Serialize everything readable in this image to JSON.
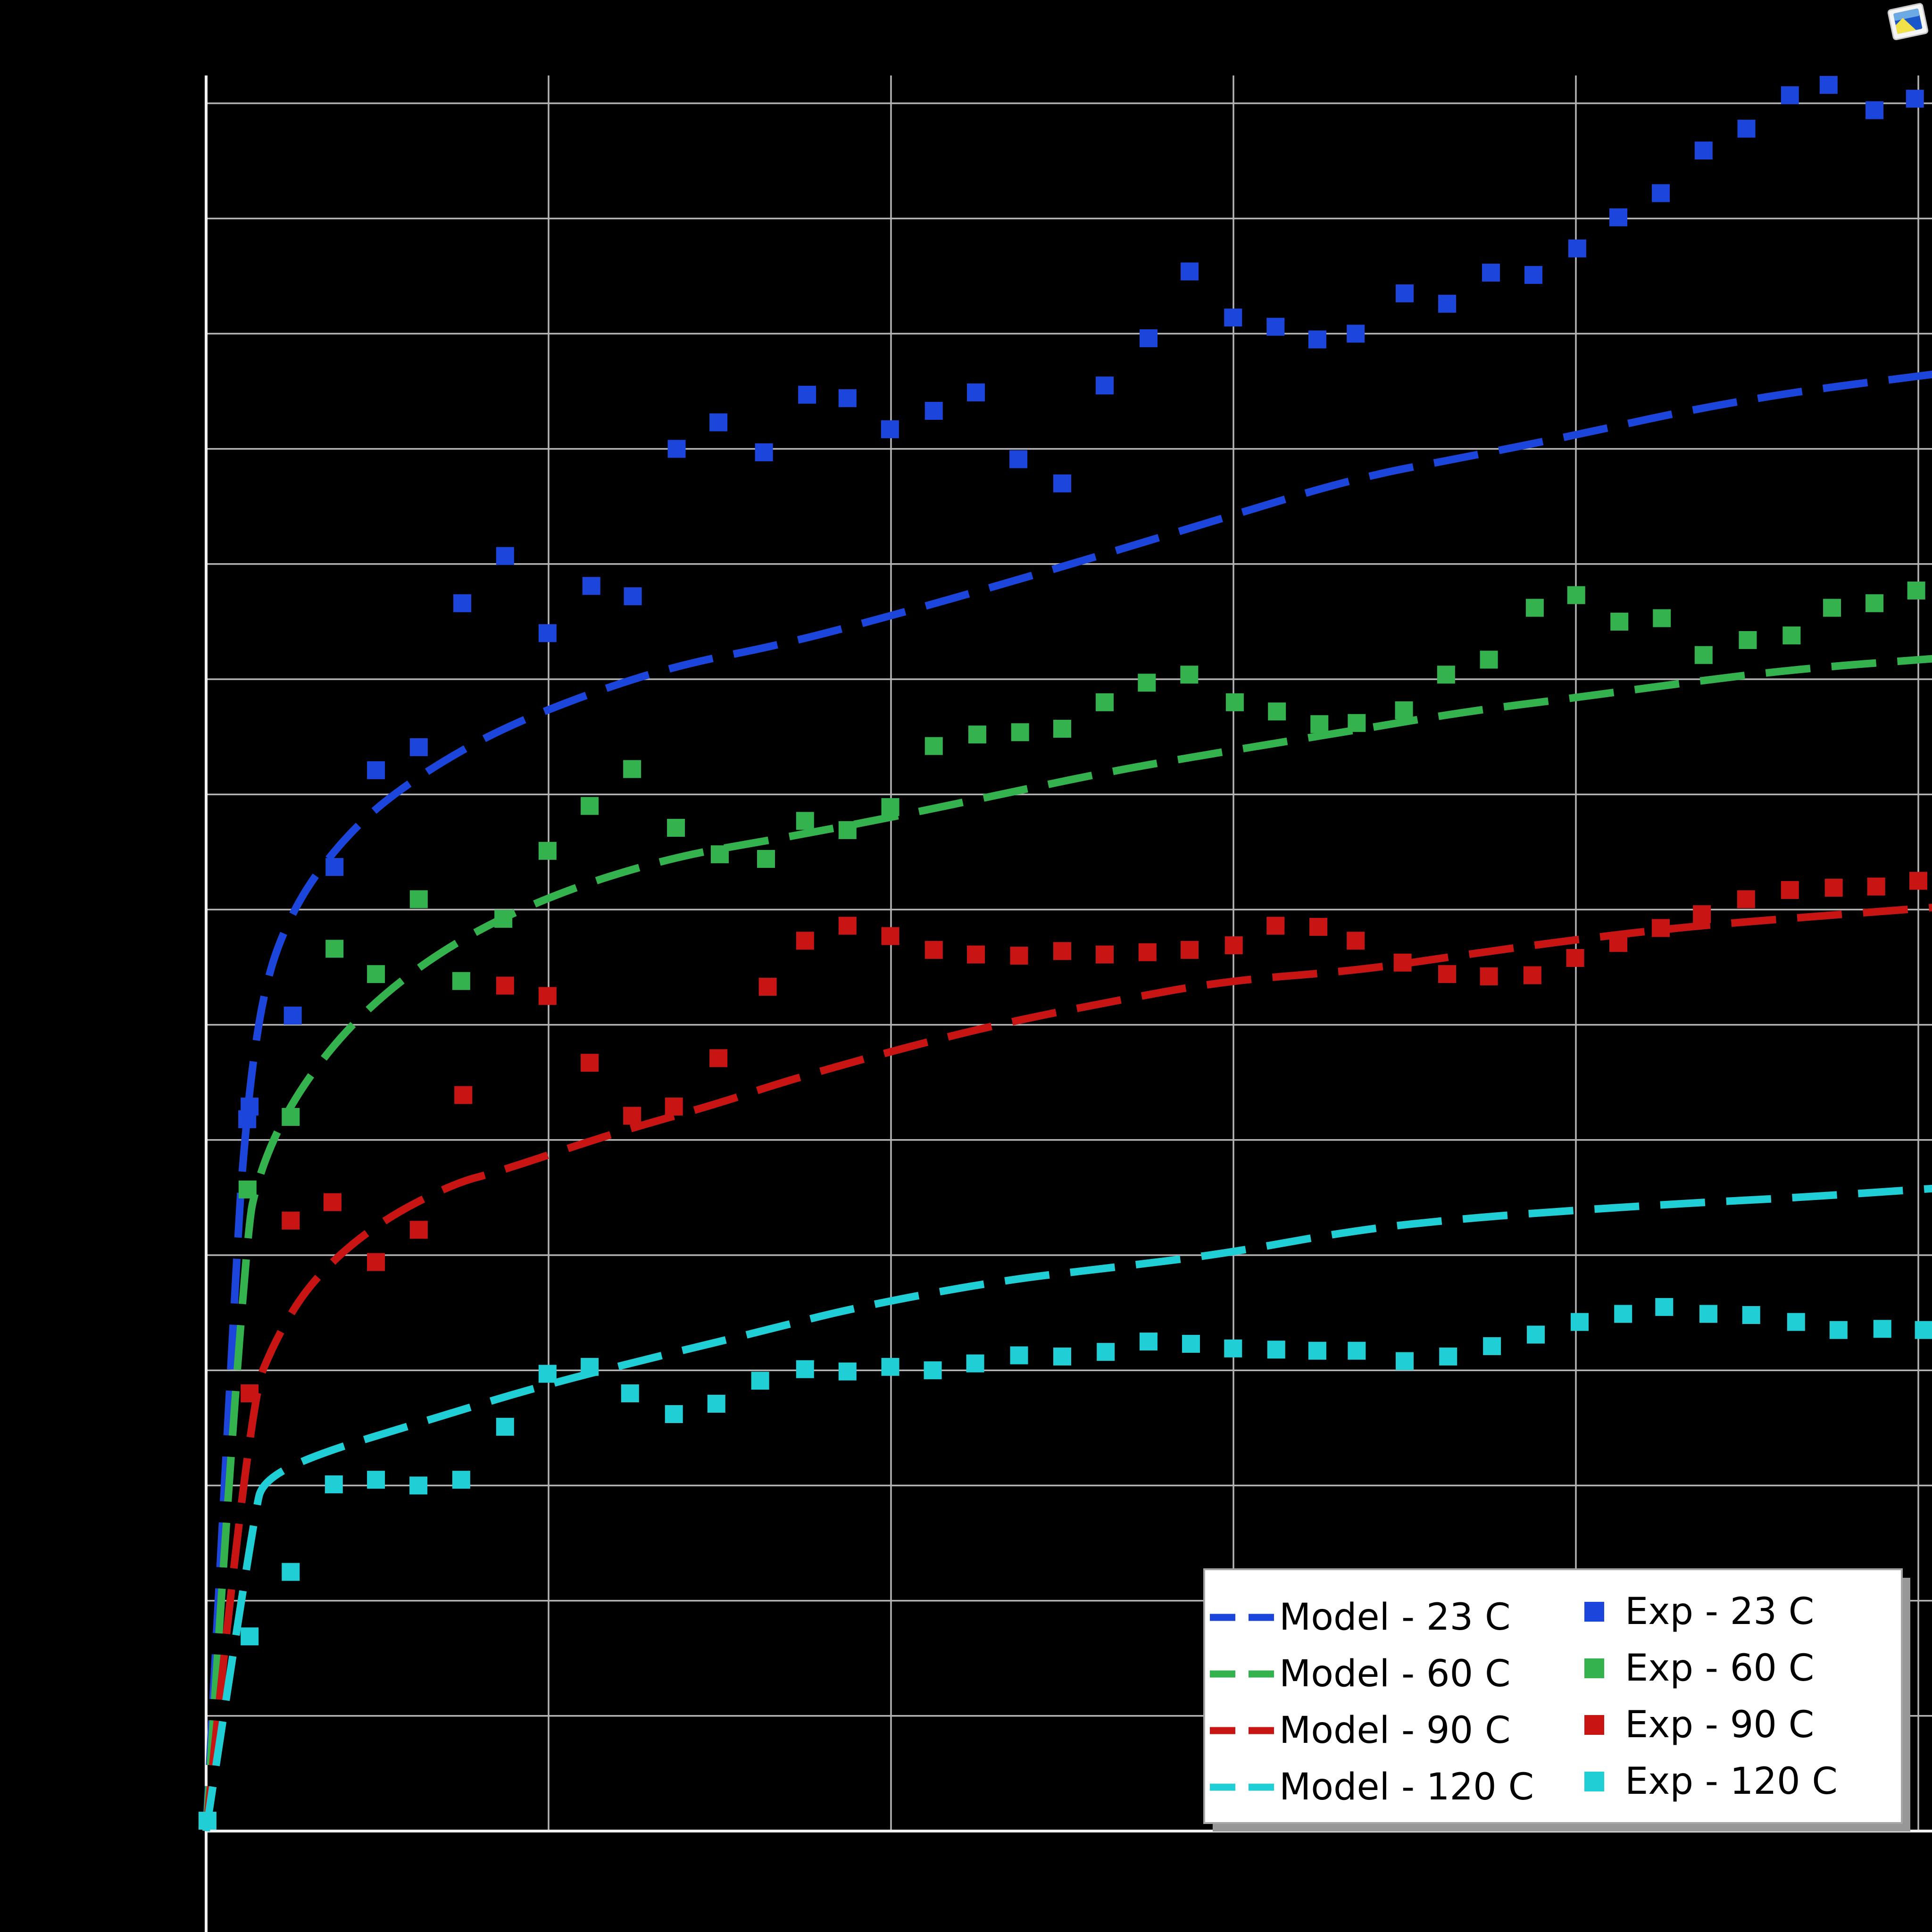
{
  "window": {
    "overlay_icon": "photo-viewer-icon"
  },
  "colors": {
    "background": "#000000",
    "grid": "#b4b4b4",
    "axis": "#f0f0f0",
    "legend_bg": "#ffffff",
    "legend_border": "#a6a6a6",
    "legend_shadow": "#979797",
    "legend_text": "#000000",
    "series_23c": "#1c46db",
    "series_60c": "#33b24e",
    "series_90c": "#c91414",
    "series_120c": "#20ced6",
    "icon_frame": "#f5f5f5",
    "icon_screen": "#1a57c8",
    "icon_screen_light": "#7db7e8",
    "icon_accent": "#f2e24a"
  },
  "chart_data": {
    "type": "scatter",
    "title": "",
    "xlabel": "",
    "ylabel": "",
    "xlim": [
      0,
      5.04
    ],
    "ylim": [
      0,
      15.24
    ],
    "x_gridline_step": 1,
    "y_gridline_step": 1,
    "grid": true,
    "tick_labels_visible": false,
    "legend_position": "lower right",
    "legend_columns": 2,
    "series": [
      {
        "name": "Model - 23 C",
        "role": "model",
        "temp_c": 23,
        "style": "dashed-line",
        "color": "#1c46db",
        "points": [
          [
            0,
            0
          ],
          [
            0.094,
            5.3
          ],
          [
            0.113,
            6.0
          ],
          [
            0.135,
            6.65
          ],
          [
            0.17,
            7.3
          ],
          [
            0.22,
            7.78
          ],
          [
            0.31,
            8.28
          ],
          [
            0.46,
            8.8
          ],
          [
            0.64,
            9.2
          ],
          [
            0.86,
            9.57
          ],
          [
            1.14,
            9.9
          ],
          [
            1.39,
            10.13
          ],
          [
            1.68,
            10.3
          ],
          [
            2.0,
            10.55
          ],
          [
            2.32,
            10.82
          ],
          [
            2.64,
            11.1
          ],
          [
            2.97,
            11.4
          ],
          [
            3.36,
            11.75
          ],
          [
            3.68,
            11.93
          ],
          [
            4.0,
            12.12
          ],
          [
            4.32,
            12.33
          ],
          [
            4.65,
            12.5
          ],
          [
            5.05,
            12.65
          ]
        ]
      },
      {
        "name": "Model - 60 C",
        "role": "model",
        "temp_c": 60,
        "style": "dashed-line",
        "color": "#33b24e",
        "points": [
          [
            0,
            0
          ],
          [
            0.11,
            5.1
          ],
          [
            0.16,
            5.78
          ],
          [
            0.27,
            6.44
          ],
          [
            0.45,
            7.1
          ],
          [
            0.7,
            7.68
          ],
          [
            1.0,
            8.12
          ],
          [
            1.35,
            8.45
          ],
          [
            1.68,
            8.62
          ],
          [
            2.0,
            8.8
          ],
          [
            2.32,
            9.0
          ],
          [
            2.64,
            9.2
          ],
          [
            2.97,
            9.37
          ],
          [
            3.36,
            9.56
          ],
          [
            3.68,
            9.72
          ],
          [
            4.0,
            9.84
          ],
          [
            4.32,
            9.97
          ],
          [
            4.65,
            10.09
          ],
          [
            5.05,
            10.18
          ]
        ]
      },
      {
        "name": "Model - 90 C",
        "role": "model",
        "temp_c": 90,
        "style": "dashed-line",
        "color": "#c91414",
        "points": [
          [
            0,
            0
          ],
          [
            0.124,
            3.7
          ],
          [
            0.21,
            4.32
          ],
          [
            0.32,
            4.82
          ],
          [
            0.5,
            5.28
          ],
          [
            0.72,
            5.62
          ],
          [
            0.86,
            5.73
          ],
          [
            1.18,
            6.05
          ],
          [
            1.5,
            6.32
          ],
          [
            1.68,
            6.5
          ],
          [
            2.0,
            6.77
          ],
          [
            2.32,
            7.01
          ],
          [
            2.64,
            7.2
          ],
          [
            2.97,
            7.38
          ],
          [
            3.36,
            7.47
          ],
          [
            3.68,
            7.61
          ],
          [
            4.0,
            7.74
          ],
          [
            4.32,
            7.85
          ],
          [
            4.65,
            7.93
          ],
          [
            5.05,
            8.02
          ]
        ]
      },
      {
        "name": "Model - 120 C",
        "role": "model",
        "temp_c": 120,
        "style": "dashed-line",
        "color": "#20ced6",
        "points": [
          [
            0,
            0
          ],
          [
            0.142,
            2.8
          ],
          [
            0.17,
            3.05
          ],
          [
            0.32,
            3.27
          ],
          [
            0.64,
            3.56
          ],
          [
            0.96,
            3.85
          ],
          [
            1.29,
            4.1
          ],
          [
            1.61,
            4.33
          ],
          [
            1.9,
            4.55
          ],
          [
            2.32,
            4.78
          ],
          [
            2.64,
            4.89
          ],
          [
            2.97,
            5.01
          ],
          [
            3.36,
            5.22
          ],
          [
            3.68,
            5.32
          ],
          [
            4.0,
            5.39
          ],
          [
            4.32,
            5.45
          ],
          [
            4.65,
            5.5
          ],
          [
            5.05,
            5.58
          ]
        ]
      },
      {
        "name": "Exp - 23 C",
        "role": "experiment",
        "temp_c": 23,
        "style": "square-marker",
        "color": "#1c46db",
        "points": [
          [
            0.12,
            6.18
          ],
          [
            0.127,
            6.29
          ],
          [
            0.253,
            7.08
          ],
          [
            0.375,
            8.37
          ],
          [
            0.496,
            9.21
          ],
          [
            0.621,
            9.41
          ],
          [
            0.748,
            10.66
          ],
          [
            0.873,
            11.07
          ],
          [
            0.997,
            10.4
          ],
          [
            1.125,
            10.81
          ],
          [
            1.246,
            10.72
          ],
          [
            1.374,
            12.0
          ],
          [
            1.496,
            12.23
          ],
          [
            1.629,
            11.97
          ],
          [
            1.755,
            12.47
          ],
          [
            1.873,
            12.44
          ],
          [
            1.997,
            12.17
          ],
          [
            2.125,
            12.33
          ],
          [
            2.248,
            12.49
          ],
          [
            2.372,
            11.91
          ],
          [
            2.5,
            11.7
          ],
          [
            2.624,
            12.55
          ],
          [
            2.752,
            12.96
          ],
          [
            2.872,
            13.54
          ],
          [
            2.999,
            13.14
          ],
          [
            3.123,
            13.06
          ],
          [
            3.245,
            12.95
          ],
          [
            3.357,
            13.0
          ],
          [
            3.5,
            13.35
          ],
          [
            3.624,
            13.26
          ],
          [
            3.752,
            13.53
          ],
          [
            3.876,
            13.51
          ],
          [
            4.004,
            13.74
          ],
          [
            4.124,
            14.01
          ],
          [
            4.248,
            14.22
          ],
          [
            4.373,
            14.59
          ],
          [
            4.498,
            14.78
          ],
          [
            4.625,
            15.07
          ],
          [
            4.738,
            15.16
          ],
          [
            4.872,
            14.94
          ],
          [
            4.99,
            15.04
          ]
        ]
      },
      {
        "name": "Exp - 60 C",
        "role": "experiment",
        "temp_c": 60,
        "style": "square-marker",
        "color": "#33b24e",
        "points": [
          [
            0.121,
            5.57
          ],
          [
            0.247,
            6.2
          ],
          [
            0.375,
            7.66
          ],
          [
            0.496,
            7.44
          ],
          [
            0.621,
            8.09
          ],
          [
            0.745,
            7.38
          ],
          [
            0.868,
            7.92
          ],
          [
            0.997,
            8.51
          ],
          [
            1.12,
            8.9
          ],
          [
            1.244,
            9.22
          ],
          [
            1.372,
            8.71
          ],
          [
            1.5,
            8.48
          ],
          [
            1.635,
            8.44
          ],
          [
            1.749,
            8.77
          ],
          [
            1.873,
            8.69
          ],
          [
            1.998,
            8.89
          ],
          [
            2.125,
            9.42
          ],
          [
            2.252,
            9.52
          ],
          [
            2.377,
            9.54
          ],
          [
            2.5,
            9.57
          ],
          [
            2.624,
            9.8
          ],
          [
            2.747,
            9.97
          ],
          [
            2.871,
            10.04
          ],
          [
            3.004,
            9.8
          ],
          [
            3.127,
            9.72
          ],
          [
            3.251,
            9.61
          ],
          [
            3.36,
            9.62
          ],
          [
            3.498,
            9.73
          ],
          [
            3.621,
            10.04
          ],
          [
            3.746,
            10.17
          ],
          [
            3.88,
            10.62
          ],
          [
            4.001,
            10.73
          ],
          [
            4.127,
            10.5
          ],
          [
            4.251,
            10.53
          ],
          [
            4.373,
            10.21
          ],
          [
            4.502,
            10.34
          ],
          [
            4.63,
            10.38
          ],
          [
            4.748,
            10.62
          ],
          [
            4.872,
            10.66
          ],
          [
            4.994,
            10.77
          ]
        ]
      },
      {
        "name": "Exp - 90 C",
        "role": "experiment",
        "temp_c": 90,
        "style": "square-marker",
        "color": "#c91414",
        "points": [
          [
            0.127,
            3.8
          ],
          [
            0.247,
            5.3
          ],
          [
            0.369,
            5.46
          ],
          [
            0.496,
            4.94
          ],
          [
            0.621,
            5.22
          ],
          [
            0.751,
            6.39
          ],
          [
            0.873,
            7.34
          ],
          [
            0.997,
            7.25
          ],
          [
            1.12,
            6.67
          ],
          [
            1.244,
            6.21
          ],
          [
            1.366,
            6.29
          ],
          [
            1.496,
            6.71
          ],
          [
            1.64,
            7.33
          ],
          [
            1.749,
            7.73
          ],
          [
            1.873,
            7.86
          ],
          [
            1.998,
            7.77
          ],
          [
            2.125,
            7.65
          ],
          [
            2.248,
            7.61
          ],
          [
            2.374,
            7.6
          ],
          [
            2.5,
            7.64
          ],
          [
            2.624,
            7.61
          ],
          [
            2.749,
            7.63
          ],
          [
            2.872,
            7.65
          ],
          [
            3.001,
            7.69
          ],
          [
            3.123,
            7.86
          ],
          [
            3.248,
            7.85
          ],
          [
            3.357,
            7.73
          ],
          [
            3.494,
            7.54
          ],
          [
            3.624,
            7.44
          ],
          [
            3.746,
            7.42
          ],
          [
            3.873,
            7.43
          ],
          [
            3.998,
            7.58
          ],
          [
            4.124,
            7.71
          ],
          [
            4.248,
            7.84
          ],
          [
            4.368,
            7.96
          ],
          [
            4.497,
            8.09
          ],
          [
            4.625,
            8.17
          ],
          [
            4.753,
            8.19
          ],
          [
            4.877,
            8.2
          ],
          [
            5.0,
            8.25
          ]
        ]
      },
      {
        "name": "Exp - 120 C",
        "role": "experiment",
        "temp_c": 120,
        "style": "square-marker",
        "color": "#20ced6",
        "points": [
          [
            0.004,
            0.09
          ],
          [
            0.127,
            1.69
          ],
          [
            0.247,
            2.25
          ],
          [
            0.373,
            3.01
          ],
          [
            0.496,
            3.05
          ],
          [
            0.62,
            3.0
          ],
          [
            0.745,
            3.05
          ],
          [
            0.873,
            3.51
          ],
          [
            0.997,
            3.97
          ],
          [
            1.12,
            4.03
          ],
          [
            1.238,
            3.8
          ],
          [
            1.366,
            3.62
          ],
          [
            1.49,
            3.71
          ],
          [
            1.618,
            3.91
          ],
          [
            1.749,
            4.01
          ],
          [
            1.873,
            3.99
          ],
          [
            1.998,
            4.03
          ],
          [
            2.122,
            4.0
          ],
          [
            2.246,
            4.06
          ],
          [
            2.374,
            4.13
          ],
          [
            2.5,
            4.12
          ],
          [
            2.627,
            4.16
          ],
          [
            2.752,
            4.25
          ],
          [
            2.876,
            4.23
          ],
          [
            2.999,
            4.19
          ],
          [
            3.125,
            4.18
          ],
          [
            3.245,
            4.17
          ],
          [
            3.36,
            4.17
          ],
          [
            3.5,
            4.08
          ],
          [
            3.627,
            4.12
          ],
          [
            3.755,
            4.21
          ],
          [
            3.883,
            4.31
          ],
          [
            4.011,
            4.42
          ],
          [
            4.138,
            4.49
          ],
          [
            4.258,
            4.55
          ],
          [
            4.387,
            4.49
          ],
          [
            4.512,
            4.48
          ],
          [
            4.643,
            4.42
          ],
          [
            4.767,
            4.35
          ],
          [
            4.895,
            4.36
          ],
          [
            5.016,
            4.35
          ]
        ]
      }
    ]
  },
  "legend": {
    "rows": [
      {
        "model_label": "Model - 23 C",
        "exp_label": "Exp - 23 C"
      },
      {
        "model_label": "Model - 60 C",
        "exp_label": "Exp - 60 C"
      },
      {
        "model_label": "Model - 90 C",
        "exp_label": "Exp - 90 C"
      },
      {
        "model_label": "Model - 120 C",
        "exp_label": "Exp - 120 C"
      }
    ]
  }
}
